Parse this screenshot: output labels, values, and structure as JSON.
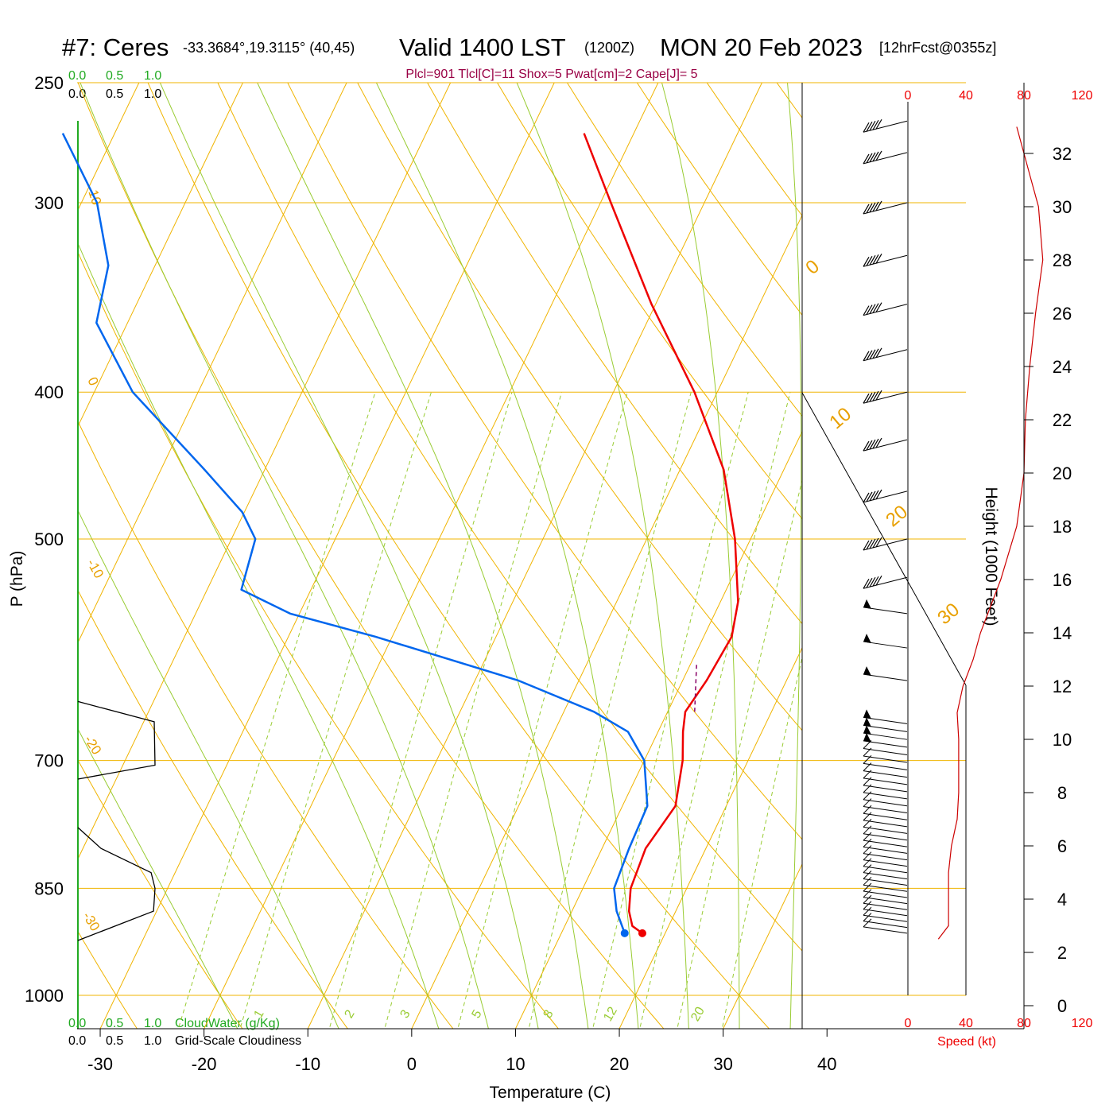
{
  "header": {
    "station": "#7: Ceres",
    "coords": "-33.3684°,19.3115° (40,45)",
    "valid": "Valid 1400 LST",
    "zulu": "(1200Z)",
    "date": "MON 20 Feb 2023",
    "forecast": "[12hrFcst@0355z]",
    "indices": "Plcl=901 Tlcl[C]=11 Shox=5 Pwat[cm]=2 Cape[J]= 5"
  },
  "axes": {
    "xlabel": "Temperature (C)",
    "ylabel": "P (hPa)",
    "height_label": "Height (1000 Feet)",
    "speed_label": "Speed (kt)",
    "cloudwater_label": "CloudWater (g/Kg)",
    "cloudiness_label": "Grid-Scale Cloudiness",
    "cloud_scale": [
      "0.0",
      "0.5",
      "1.0"
    ],
    "speed_ticks": [
      "0",
      "40",
      "80",
      "120"
    ]
  },
  "colors": {
    "temperature": "#ee0000",
    "dewpoint": "#0066ee",
    "isotherm": "#f0b400",
    "dry_adiabat": "#f0b400",
    "moist_adiabat": "#99cc33",
    "mixing_ratio": "#99cc33",
    "cloudwater": "#22aa22",
    "parcel": "#880066",
    "speed_profile": "#cc0000",
    "barb": "#000000"
  },
  "chart_data": {
    "type": "skew-t sounding",
    "pressure_ticks": [
      250,
      300,
      400,
      500,
      700,
      850,
      1000
    ],
    "temperature_ticks": [
      -30,
      -20,
      -10,
      0,
      10,
      20,
      30,
      40
    ],
    "height_ticks_kft": [
      0,
      2,
      4,
      6,
      8,
      10,
      12,
      14,
      16,
      18,
      20,
      22,
      24,
      26,
      28,
      30,
      32
    ],
    "isotherm_labels": [
      {
        "text": "10"
      },
      {
        "text": "0"
      },
      {
        "text": "-10"
      },
      {
        "text": "-20"
      },
      {
        "text": "-30"
      }
    ],
    "dry_adiabat_labels": [
      {
        "text": "0"
      },
      {
        "text": "10"
      },
      {
        "text": "20"
      },
      {
        "text": "30"
      }
    ],
    "mixing_ratio_labels": [
      "1",
      "2",
      "3",
      "5",
      "8",
      "12",
      "20"
    ],
    "temperature_profile": [
      {
        "p": 910,
        "t": 17.8
      },
      {
        "p": 900,
        "t": 16.5
      },
      {
        "p": 880,
        "t": 15.5
      },
      {
        "p": 850,
        "t": 14.6
      },
      {
        "p": 800,
        "t": 14.2
      },
      {
        "p": 750,
        "t": 15.1
      },
      {
        "p": 700,
        "t": 13.7
      },
      {
        "p": 670,
        "t": 12.4
      },
      {
        "p": 650,
        "t": 11.7
      },
      {
        "p": 620,
        "t": 12.3
      },
      {
        "p": 580,
        "t": 12.7
      },
      {
        "p": 550,
        "t": 11.7
      },
      {
        "p": 500,
        "t": 8.5
      },
      {
        "p": 450,
        "t": 4.2
      },
      {
        "p": 400,
        "t": -2.2
      },
      {
        "p": 350,
        "t": -10.4
      },
      {
        "p": 300,
        "t": -19.0
      },
      {
        "p": 270,
        "t": -24.8
      }
    ],
    "dewpoint_profile": [
      {
        "p": 910,
        "t": 16.1
      },
      {
        "p": 880,
        "t": 14.3
      },
      {
        "p": 850,
        "t": 13.0
      },
      {
        "p": 800,
        "t": 12.6
      },
      {
        "p": 750,
        "t": 12.4
      },
      {
        "p": 700,
        "t": 10.0
      },
      {
        "p": 670,
        "t": 7.1
      },
      {
        "p": 650,
        "t": 2.9
      },
      {
        "p": 620,
        "t": -5.8
      },
      {
        "p": 580,
        "t": -21.6
      },
      {
        "p": 560,
        "t": -30.9
      },
      {
        "p": 540,
        "t": -36.7
      },
      {
        "p": 500,
        "t": -37.7
      },
      {
        "p": 480,
        "t": -40.2
      },
      {
        "p": 450,
        "t": -45.8
      },
      {
        "p": 400,
        "t": -56.3
      },
      {
        "p": 360,
        "t": -63.0
      },
      {
        "p": 330,
        "t": -64.5
      },
      {
        "p": 300,
        "t": -68.5
      },
      {
        "p": 270,
        "t": -75.0
      }
    ],
    "wind_speed_profile_kt": [
      {
        "h": 2.5,
        "s": 21
      },
      {
        "h": 3,
        "s": 28
      },
      {
        "h": 4,
        "s": 28
      },
      {
        "h": 5,
        "s": 28
      },
      {
        "h": 6,
        "s": 30
      },
      {
        "h": 7,
        "s": 34
      },
      {
        "h": 8,
        "s": 35
      },
      {
        "h": 9,
        "s": 35
      },
      {
        "h": 10,
        "s": 35
      },
      {
        "h": 11,
        "s": 34
      },
      {
        "h": 12,
        "s": 38
      },
      {
        "h": 13,
        "s": 45
      },
      {
        "h": 14,
        "s": 50
      },
      {
        "h": 16,
        "s": 64
      },
      {
        "h": 18,
        "s": 75
      },
      {
        "h": 20,
        "s": 80
      },
      {
        "h": 22,
        "s": 81
      },
      {
        "h": 24,
        "s": 84
      },
      {
        "h": 26,
        "s": 88
      },
      {
        "h": 28,
        "s": 93
      },
      {
        "h": 30,
        "s": 90
      },
      {
        "h": 31,
        "s": 85
      },
      {
        "h": 32,
        "s": 80
      },
      {
        "h": 33,
        "s": 75
      }
    ],
    "cloudiness_profile": [
      {
        "p": 640,
        "v": 0.0
      },
      {
        "p": 660,
        "v": 0.99
      },
      {
        "p": 705,
        "v": 1.0
      },
      {
        "p": 720,
        "v": 0.0
      },
      {
        "p": 775,
        "v": 0.0
      },
      {
        "p": 800,
        "v": 0.3
      },
      {
        "p": 830,
        "v": 0.95
      },
      {
        "p": 850,
        "v": 1.0
      },
      {
        "p": 880,
        "v": 0.98
      },
      {
        "p": 920,
        "v": 0.0
      }
    ]
  }
}
